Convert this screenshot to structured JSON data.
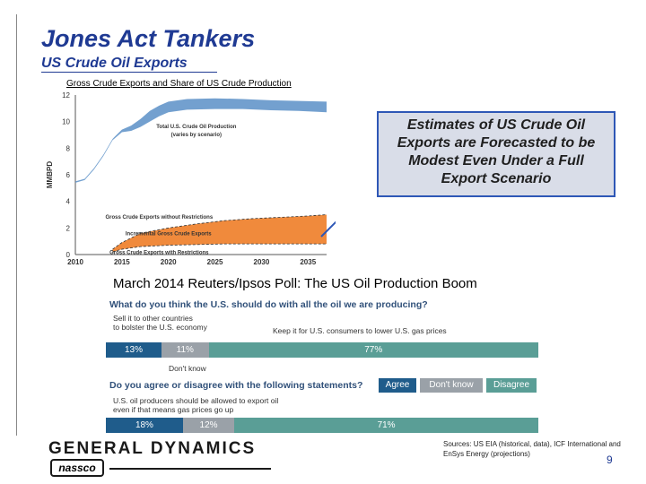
{
  "header": {
    "title": "Jones Act Tankers",
    "subtitle": "US Crude Oil Exports"
  },
  "callout": {
    "lines": [
      "Estimates of US Crude Oil",
      "Exports are Forecasted to be",
      "Modest Even Under a Full",
      "Export Scenario"
    ]
  },
  "chart_data": {
    "type": "area",
    "title": "Gross Crude Exports and Share of US Crude Production",
    "xlabel": "",
    "ylabel": "MMBPD",
    "xlim": [
      2010,
      2037
    ],
    "ylim": [
      0,
      12
    ],
    "xticks": [
      "2010",
      "2015",
      "2020",
      "2025",
      "2030",
      "2035"
    ],
    "yticks": [
      "0",
      "2",
      "4",
      "6",
      "8",
      "10",
      "12"
    ],
    "series": [
      {
        "name": "Total U.S. Crude Oil Production",
        "x": [
          2010,
          2011,
          2012,
          2013,
          2014,
          2015,
          2016,
          2017,
          2018,
          2019,
          2020,
          2022,
          2025,
          2028,
          2031,
          2034,
          2037
        ],
        "low": [
          5.4,
          5.6,
          6.4,
          7.4,
          8.6,
          9.2,
          9.3,
          9.6,
          10.0,
          10.4,
          10.7,
          10.9,
          10.95,
          10.95,
          10.85,
          10.8,
          10.7
        ],
        "high": [
          5.5,
          5.7,
          6.5,
          7.5,
          8.7,
          9.4,
          9.7,
          10.2,
          10.8,
          11.2,
          11.5,
          11.7,
          11.75,
          11.7,
          11.6,
          11.55,
          11.5
        ]
      },
      {
        "name": "Gross Crude Exports without Restrictions",
        "x": [
          2014,
          2015,
          2017,
          2020,
          2023,
          2026,
          2029,
          2032,
          2035,
          2037
        ],
        "values": [
          0.4,
          0.9,
          1.6,
          2.0,
          2.3,
          2.55,
          2.7,
          2.8,
          2.9,
          3.0
        ]
      },
      {
        "name": "Gross Crude Exports with Restrictions",
        "x": [
          2014,
          2015,
          2017,
          2020,
          2023,
          2026,
          2029,
          2032,
          2035,
          2037
        ],
        "values": [
          0.2,
          0.4,
          0.6,
          0.7,
          0.75,
          0.8,
          0.8,
          0.8,
          0.8,
          0.8
        ]
      }
    ],
    "annotations": [
      {
        "text": "Total U.S. Crude Oil Production",
        "x": 2023,
        "y": 9.5
      },
      {
        "text": "(varies by scenario)",
        "x": 2023,
        "y": 8.9
      },
      {
        "text": "Gross Crude Exports without Restrictions",
        "x": 2019,
        "y": 2.7
      },
      {
        "text": "Incremental Gross Crude Exports",
        "x": 2020,
        "y": 1.45
      },
      {
        "text": "Gross Crude Exports with Restrictions",
        "x": 2019,
        "y": 0.05
      }
    ],
    "colors": {
      "production": "#5b8fc7",
      "incremental": "#f08a3c",
      "axis": "#555555",
      "arrow": "#2e57b6"
    },
    "grid": false,
    "legend": "none"
  },
  "poll": {
    "title": "March 2014 Reuters/Ipsos Poll: The US Oil Production Boom",
    "q1": "What do you think the U.S. should do with all the oil we are producing?",
    "q1_left_label_1": "Sell it to other countries",
    "q1_left_label_2": "to bolster the U.S. economy",
    "q1_right_label": "Keep it for U.S. consumers to lower U.S. gas prices",
    "q1_values": {
      "sell": "13%",
      "dontknow": "11%",
      "keep": "77%"
    },
    "q1_fractions": [
      0.13,
      0.11,
      0.77
    ],
    "dont_know": "Don't know",
    "q2": "Do you agree or disagree with the following statements?",
    "legend": {
      "agree": "Agree",
      "dontknow": "Don't know",
      "disagree": "Disagree"
    },
    "q2_statement_1": "U.S. oil producers should be allowed to export oil",
    "q2_statement_2": "even if that means gas prices go up",
    "q2_values": {
      "agree": "18%",
      "dontknow": "12%",
      "disagree": "71%"
    },
    "q2_fractions": [
      0.18,
      0.12,
      0.71
    ],
    "colors": {
      "agree": "#1f5c8b",
      "dontknow": "#9aa1a8",
      "disagree": "#5a9e96"
    }
  },
  "footer": {
    "logo_text": "GENERAL DYNAMICS",
    "logo_sub": "nassco",
    "sources": "Sources: US EIA (historical, data), ICF International and EnSys Energy (projections)",
    "page": "9"
  }
}
